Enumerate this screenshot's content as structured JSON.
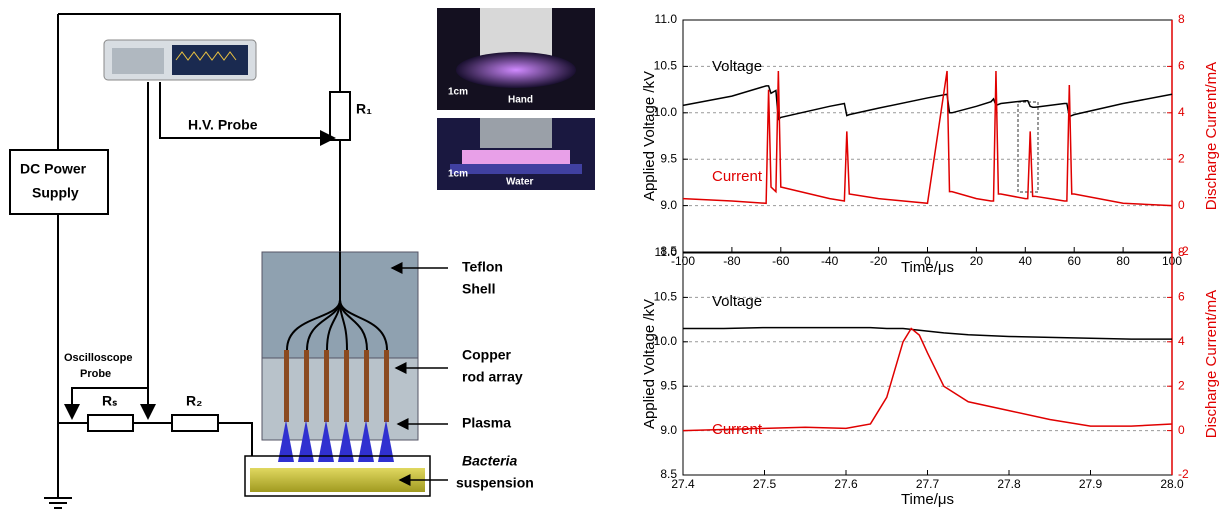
{
  "diagram": {
    "power_supply": [
      "DC Power",
      "Supply"
    ],
    "hv_probe": "H.V. Probe",
    "r1": "R₁",
    "oscilloscope_probe": [
      "Oscilloscope",
      "Probe"
    ],
    "rs": "Rₛ",
    "r2": "R₂",
    "teflon_shell": [
      "Teflon",
      "Shell"
    ],
    "copper_rod_array": [
      "Copper",
      "rod array"
    ],
    "plasma": "Plasma",
    "bacteria": "Bacteria",
    "suspension": "suspension",
    "photos": [
      {
        "scale": "1cm",
        "label": "Hand"
      },
      {
        "scale": "1cm",
        "label": "Water"
      }
    ]
  },
  "chart_data": [
    {
      "type": "line",
      "xlabel": "Time/μs",
      "ylabel": "Applied Voltage /kV",
      "y2label": "Discharge Current/mA",
      "grid": true,
      "x": [
        -100,
        -80,
        -66,
        -65,
        -64,
        -62,
        -61,
        -60,
        -40,
        -34,
        -33,
        -32,
        -20,
        0,
        8,
        9,
        10,
        20,
        26,
        27,
        28,
        29,
        30,
        40,
        41,
        42,
        43,
        44,
        50,
        56,
        57,
        58,
        59,
        60,
        80,
        100
      ],
      "series": [
        {
          "name": "Voltage",
          "color": "#000000",
          "values": [
            10.08,
            10.18,
            10.29,
            10.29,
            10.21,
            10.24,
            9.93,
            9.95,
            10.07,
            10.1,
            9.97,
            9.98,
            10.05,
            10.16,
            10.2,
            10.0,
            10.0,
            10.07,
            10.12,
            10.15,
            10.08,
            10.09,
            10.1,
            10.13,
            10.13,
            10.07,
            10.06,
            10.06,
            10.08,
            10.1,
            10.1,
            9.96,
            9.97,
            9.98,
            10.1,
            10.2
          ]
        },
        {
          "name": "Current",
          "color": "#e00000",
          "axis": "y2",
          "values": [
            0.3,
            0.2,
            0.1,
            5.0,
            0.8,
            0.6,
            5.8,
            0.8,
            0.3,
            0.2,
            3.2,
            0.5,
            0.3,
            0.1,
            5.8,
            0.6,
            0.6,
            0.3,
            0.2,
            0.2,
            5.8,
            0.5,
            0.5,
            0.3,
            0.3,
            3.2,
            0.4,
            0.4,
            0.3,
            0.2,
            0.2,
            5.2,
            0.5,
            0.5,
            0.1,
            0.0
          ]
        }
      ],
      "xlim": [
        -100,
        100
      ],
      "xticks": [
        -100,
        -80,
        -60,
        -40,
        -20,
        0,
        20,
        40,
        60,
        80,
        100
      ],
      "ylim": [
        8.5,
        11
      ],
      "yticks": [
        8.5,
        {
          "value": 9,
          "label": "9.0"
        },
        9.5,
        {
          "value": 10,
          "label": "10.0"
        },
        10.5,
        {
          "value": 11,
          "label": "11.0"
        }
      ],
      "y2lim": [
        -2,
        8
      ],
      "y2ticks": [
        -2,
        0,
        2,
        4,
        6,
        8
      ]
    },
    {
      "type": "line",
      "xlabel": "Time/μs",
      "ylabel": "Applied Voltage /kV",
      "y2label": "Discharge Current/mA",
      "grid": true,
      "x": [
        27.4,
        27.45,
        27.5,
        27.55,
        27.6,
        27.63,
        27.65,
        27.67,
        27.68,
        27.69,
        27.7,
        27.72,
        27.75,
        27.8,
        27.85,
        27.9,
        27.95,
        28.0
      ],
      "series": [
        {
          "name": "Voltage",
          "color": "#000000",
          "values": [
            10.15,
            10.15,
            10.16,
            10.16,
            10.16,
            10.16,
            10.15,
            10.15,
            10.14,
            10.13,
            10.12,
            10.1,
            10.08,
            10.06,
            10.05,
            10.04,
            10.03,
            10.03
          ]
        },
        {
          "name": "Current",
          "color": "#e00000",
          "axis": "y2",
          "values": [
            0.0,
            0.05,
            0.1,
            0.15,
            0.1,
            0.3,
            1.5,
            4.0,
            4.6,
            4.3,
            3.5,
            2.0,
            1.3,
            0.9,
            0.5,
            0.2,
            0.2,
            0.3
          ]
        }
      ],
      "xlim": [
        27.4,
        28.0
      ],
      "xticks": [
        27.4,
        27.5,
        27.6,
        27.7,
        27.8,
        27.9,
        {
          "value": 28,
          "label": "28.0"
        }
      ],
      "ylim": [
        8.5,
        11
      ],
      "yticks": [
        8.5,
        {
          "value": 9,
          "label": "9.0"
        },
        9.5,
        {
          "value": 10,
          "label": "10.0"
        },
        10.5,
        {
          "value": 11,
          "label": "11.0"
        }
      ],
      "y2lim": [
        -2,
        8
      ],
      "y2ticks": [
        -2,
        0,
        2,
        4,
        6,
        8
      ]
    }
  ]
}
